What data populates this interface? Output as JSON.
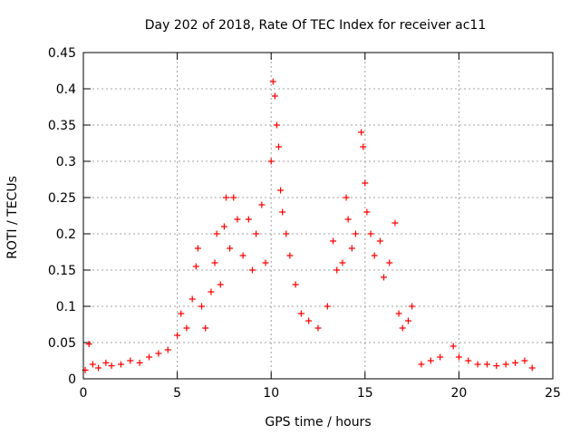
{
  "chart_data": {
    "type": "scatter",
    "title": "Day 202 of 2018, Rate Of TEC Index for receiver ac11",
    "xlabel": "GPS time / hours",
    "ylabel": "ROTI / TECUs",
    "xlim": [
      0,
      25
    ],
    "ylim": [
      0,
      0.45
    ],
    "xticks": [
      0,
      5,
      10,
      15,
      20,
      25
    ],
    "yticks": [
      0,
      0.05,
      0.1,
      0.15,
      0.2,
      0.25,
      0.3,
      0.35,
      0.4,
      0.45
    ],
    "grid": true,
    "marker": "+",
    "color": "#ff0000",
    "series": [
      {
        "points": [
          [
            0.1,
            0.012
          ],
          [
            0.3,
            0.048
          ],
          [
            0.5,
            0.02
          ],
          [
            0.8,
            0.015
          ],
          [
            1.2,
            0.022
          ],
          [
            1.5,
            0.018
          ],
          [
            2.0,
            0.02
          ],
          [
            2.5,
            0.025
          ],
          [
            3.0,
            0.022
          ],
          [
            3.5,
            0.03
          ],
          [
            4.0,
            0.035
          ],
          [
            4.5,
            0.04
          ],
          [
            5.0,
            0.06
          ],
          [
            5.2,
            0.09
          ],
          [
            5.5,
            0.07
          ],
          [
            5.8,
            0.11
          ],
          [
            6.0,
            0.155
          ],
          [
            6.1,
            0.18
          ],
          [
            6.3,
            0.1
          ],
          [
            6.5,
            0.07
          ],
          [
            6.8,
            0.12
          ],
          [
            7.0,
            0.16
          ],
          [
            7.1,
            0.2
          ],
          [
            7.3,
            0.13
          ],
          [
            7.5,
            0.21
          ],
          [
            7.6,
            0.25
          ],
          [
            7.8,
            0.18
          ],
          [
            8.0,
            0.25
          ],
          [
            8.2,
            0.22
          ],
          [
            8.5,
            0.17
          ],
          [
            8.8,
            0.22
          ],
          [
            9.0,
            0.15
          ],
          [
            9.2,
            0.2
          ],
          [
            9.5,
            0.24
          ],
          [
            9.7,
            0.16
          ],
          [
            10.0,
            0.3
          ],
          [
            10.1,
            0.41
          ],
          [
            10.2,
            0.39
          ],
          [
            10.3,
            0.35
          ],
          [
            10.4,
            0.32
          ],
          [
            10.5,
            0.26
          ],
          [
            10.6,
            0.23
          ],
          [
            10.8,
            0.2
          ],
          [
            11.0,
            0.17
          ],
          [
            11.3,
            0.13
          ],
          [
            11.6,
            0.09
          ],
          [
            12.0,
            0.08
          ],
          [
            12.5,
            0.07
          ],
          [
            13.0,
            0.1
          ],
          [
            13.3,
            0.19
          ],
          [
            13.5,
            0.15
          ],
          [
            13.8,
            0.16
          ],
          [
            14.0,
            0.25
          ],
          [
            14.1,
            0.22
          ],
          [
            14.3,
            0.18
          ],
          [
            14.5,
            0.2
          ],
          [
            14.8,
            0.34
          ],
          [
            14.9,
            0.32
          ],
          [
            15.0,
            0.27
          ],
          [
            15.1,
            0.23
          ],
          [
            15.3,
            0.2
          ],
          [
            15.5,
            0.17
          ],
          [
            15.8,
            0.19
          ],
          [
            16.0,
            0.14
          ],
          [
            16.3,
            0.16
          ],
          [
            16.6,
            0.215
          ],
          [
            16.8,
            0.09
          ],
          [
            17.0,
            0.07
          ],
          [
            17.3,
            0.08
          ],
          [
            17.5,
            0.1
          ],
          [
            18.0,
            0.02
          ],
          [
            18.5,
            0.025
          ],
          [
            19.0,
            0.03
          ],
          [
            19.7,
            0.045
          ],
          [
            20.0,
            0.03
          ],
          [
            20.5,
            0.025
          ],
          [
            21.0,
            0.02
          ],
          [
            21.5,
            0.02
          ],
          [
            22.0,
            0.018
          ],
          [
            22.5,
            0.02
          ],
          [
            23.0,
            0.022
          ],
          [
            23.5,
            0.025
          ],
          [
            23.9,
            0.015
          ]
        ]
      }
    ]
  }
}
